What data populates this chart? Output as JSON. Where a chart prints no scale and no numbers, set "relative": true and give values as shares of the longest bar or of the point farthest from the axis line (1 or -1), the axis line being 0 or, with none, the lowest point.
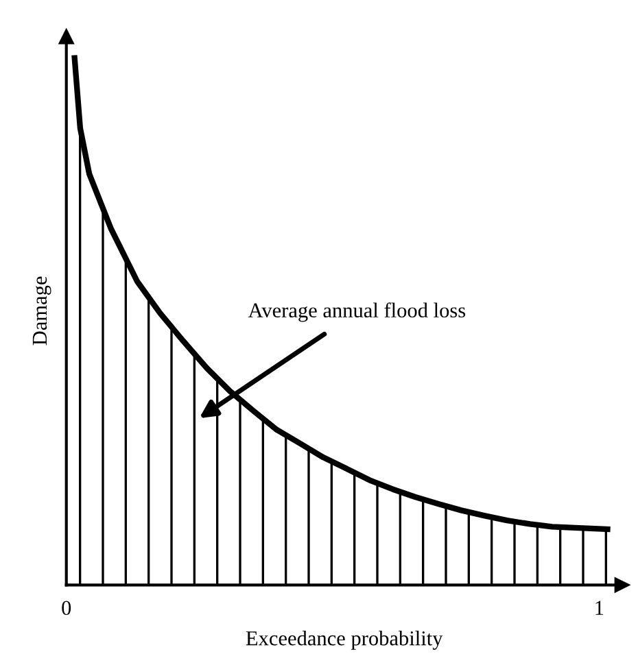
{
  "chart_data": {
    "type": "area",
    "relative": true,
    "xlabel": "Exceedance probability",
    "ylabel": "Damage",
    "xlim": [
      0,
      1.043
    ],
    "xticks": [
      0,
      1
    ],
    "series": [
      {
        "color": "#000000",
        "x": [
          0.015,
          0.026,
          0.043,
          0.084,
          0.133,
          0.176,
          0.219,
          0.264,
          0.307,
          0.352,
          0.395,
          0.439,
          0.482,
          0.525,
          0.569,
          0.612,
          0.655,
          0.698,
          0.741,
          0.784,
          0.827,
          0.87,
          0.912,
          0.955,
          1.021
        ],
        "values": [
          1.0,
          0.862,
          0.776,
          0.672,
          0.573,
          0.513,
          0.461,
          0.409,
          0.366,
          0.328,
          0.293,
          0.267,
          0.241,
          0.22,
          0.198,
          0.181,
          0.166,
          0.153,
          0.141,
          0.131,
          0.122,
          0.115,
          0.11,
          0.108,
          0.105
        ]
      }
    ],
    "annotations": [
      "Average annual flood loss"
    ],
    "grid": false,
    "legend": false
  }
}
